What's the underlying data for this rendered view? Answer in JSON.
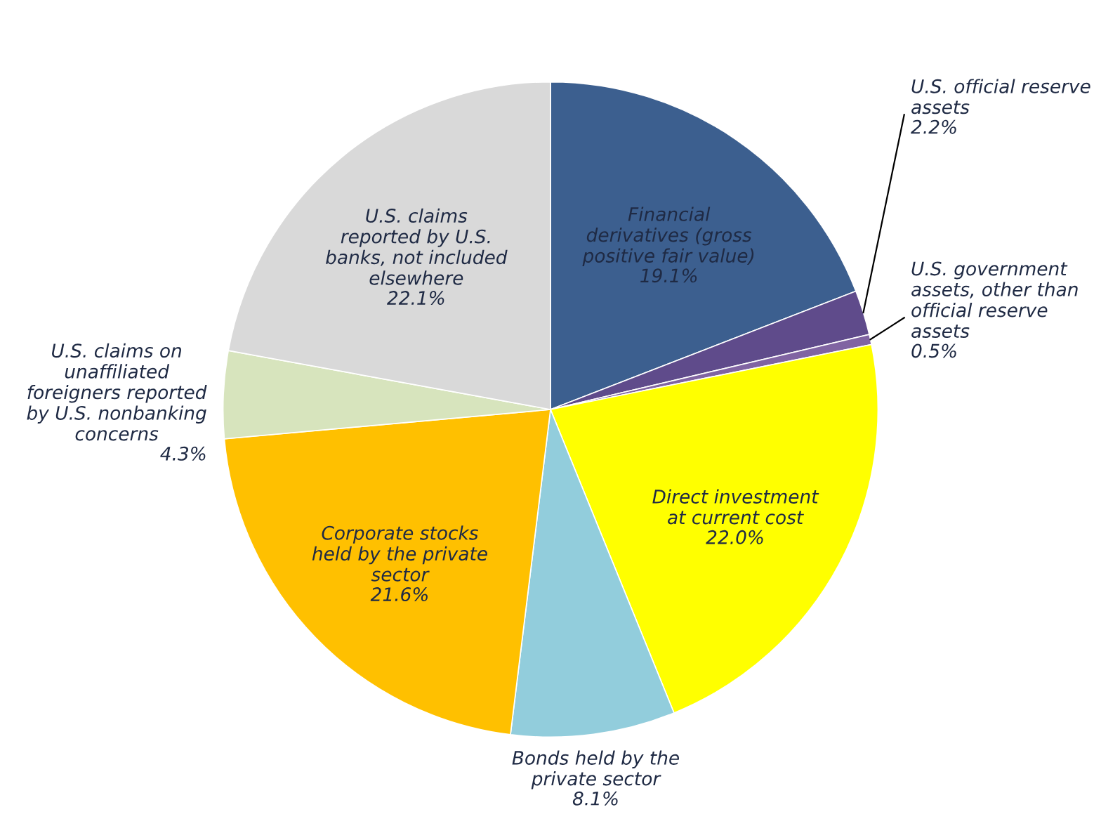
{
  "chart_data": {
    "type": "pie",
    "legend": false,
    "categories": [
      "Financial\nderivatives (gross\npositive fair value)",
      "U.S. official reserve\nassets",
      "U.S. government\nassets, other than\nofficial reserve\nassets",
      "Direct investment\nat current cost",
      "Bonds held by the\nprivate sector",
      "Corporate stocks\nheld by the private\nsector",
      "U.S. claims on\nunaffiliated\nforeigners reported\nby U.S. nonbanking\nconcerns",
      "U.S. claims\nreported by U.S.\nbanks, not included\nelsewhere"
    ],
    "values": [
      19.1,
      2.2,
      0.5,
      22.0,
      8.1,
      21.6,
      4.3,
      22.1
    ],
    "value_labels": [
      "19.1%",
      "2.2%",
      "0.5%",
      "22.0%",
      "8.1%",
      "21.6%",
      "4.3%",
      "22.1%"
    ],
    "colors": [
      "#3c5f8f",
      "#5f4b8b",
      "#8064a2",
      "#ffff00",
      "#92cddc",
      "#ffc000",
      "#d7e4bd",
      "#d9d9d9"
    ]
  }
}
